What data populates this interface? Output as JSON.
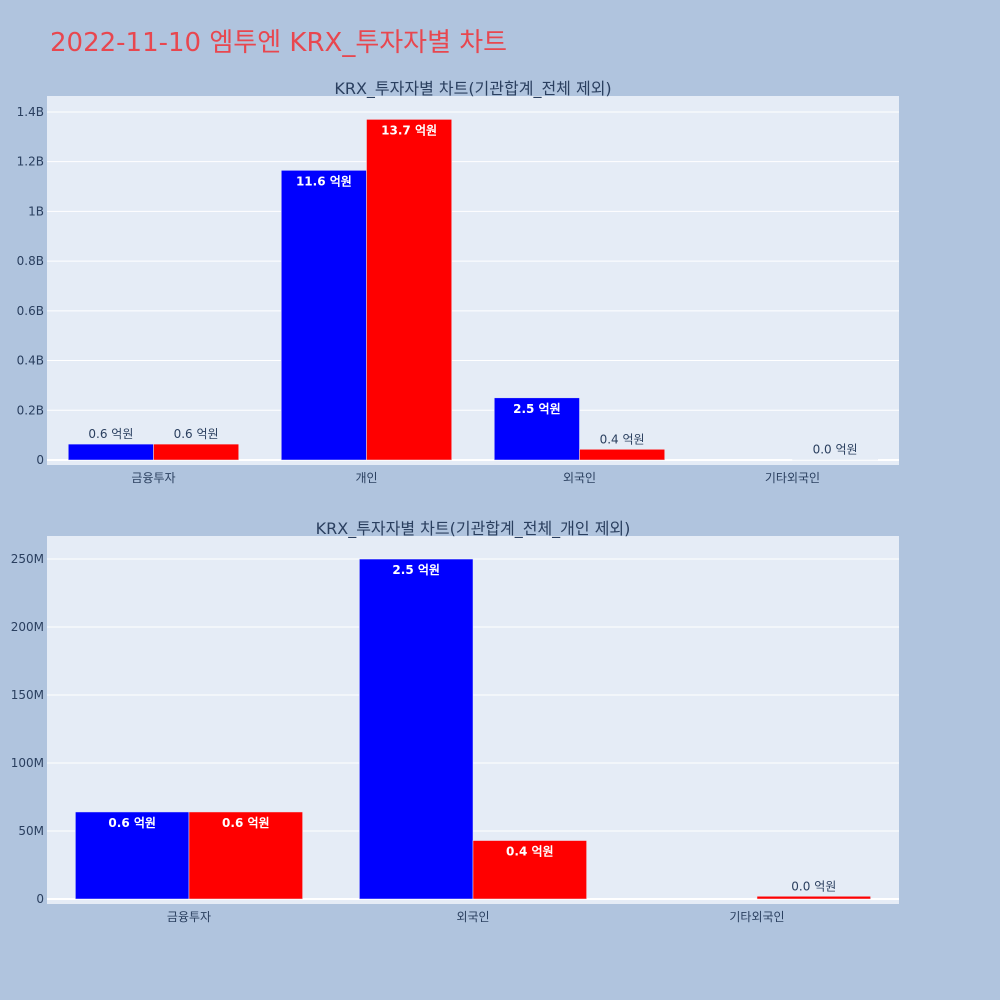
{
  "page_title": "2022-11-10 엠투엔 KRX_투자자별 차트",
  "colors": {
    "background": "#b0c4de",
    "plot_background": "#e5ecf6",
    "title": "#e8474f",
    "series_1": "#0000ff",
    "series_2": "#ff0000",
    "text": "#2a3f5f",
    "grid": "#ffffff"
  },
  "chart_data": [
    {
      "type": "bar",
      "title": "KRX_투자자별 차트(기관합계_전체 제외)",
      "categories": [
        "금융투자",
        "개인",
        "외국인",
        "기타외국인"
      ],
      "series": [
        {
          "color": "#0000ff",
          "values": [
            64000000,
            1165000000,
            250000000,
            0
          ],
          "labels": [
            "0.6 억원",
            "11.6 억원",
            "2.5 억원",
            ""
          ]
        },
        {
          "color": "#ff0000",
          "values": [
            64000000,
            1370000000,
            43000000,
            2000000
          ],
          "labels": [
            "0.6 억원",
            "13.7 억원",
            "0.4 억원",
            "0.0 억원"
          ]
        }
      ],
      "yticks": [
        {
          "value": 0,
          "label": "0"
        },
        {
          "value": 200000000,
          "label": "0.2B"
        },
        {
          "value": 400000000,
          "label": "0.4B"
        },
        {
          "value": 600000000,
          "label": "0.6B"
        },
        {
          "value": 800000000,
          "label": "0.8B"
        },
        {
          "value": 1000000000,
          "label": "1B"
        },
        {
          "value": 1200000000,
          "label": "1.2B"
        },
        {
          "value": 1400000000,
          "label": "1.4B"
        }
      ],
      "ylim": [
        0,
        1440000000
      ],
      "xlabel": "",
      "ylabel": ""
    },
    {
      "type": "bar",
      "title": "KRX_투자자별 차트(기관합계_전체_개인 제외)",
      "categories": [
        "금융투자",
        "외국인",
        "기타외국인"
      ],
      "series": [
        {
          "color": "#0000ff",
          "values": [
            64000000,
            250000000,
            0
          ],
          "labels": [
            "0.6 억원",
            "2.5 억원",
            ""
          ]
        },
        {
          "color": "#ff0000",
          "values": [
            64000000,
            43000000,
            2000000
          ],
          "labels": [
            "0.6 억원",
            "0.4 억원",
            "0.0 억원"
          ]
        }
      ],
      "yticks": [
        {
          "value": 0,
          "label": "0"
        },
        {
          "value": 50000000,
          "label": "50M"
        },
        {
          "value": 100000000,
          "label": "100M"
        },
        {
          "value": 150000000,
          "label": "150M"
        },
        {
          "value": 200000000,
          "label": "200M"
        },
        {
          "value": 250000000,
          "label": "250M"
        }
      ],
      "ylim": [
        0,
        264000000
      ],
      "xlabel": "",
      "ylabel": ""
    }
  ]
}
